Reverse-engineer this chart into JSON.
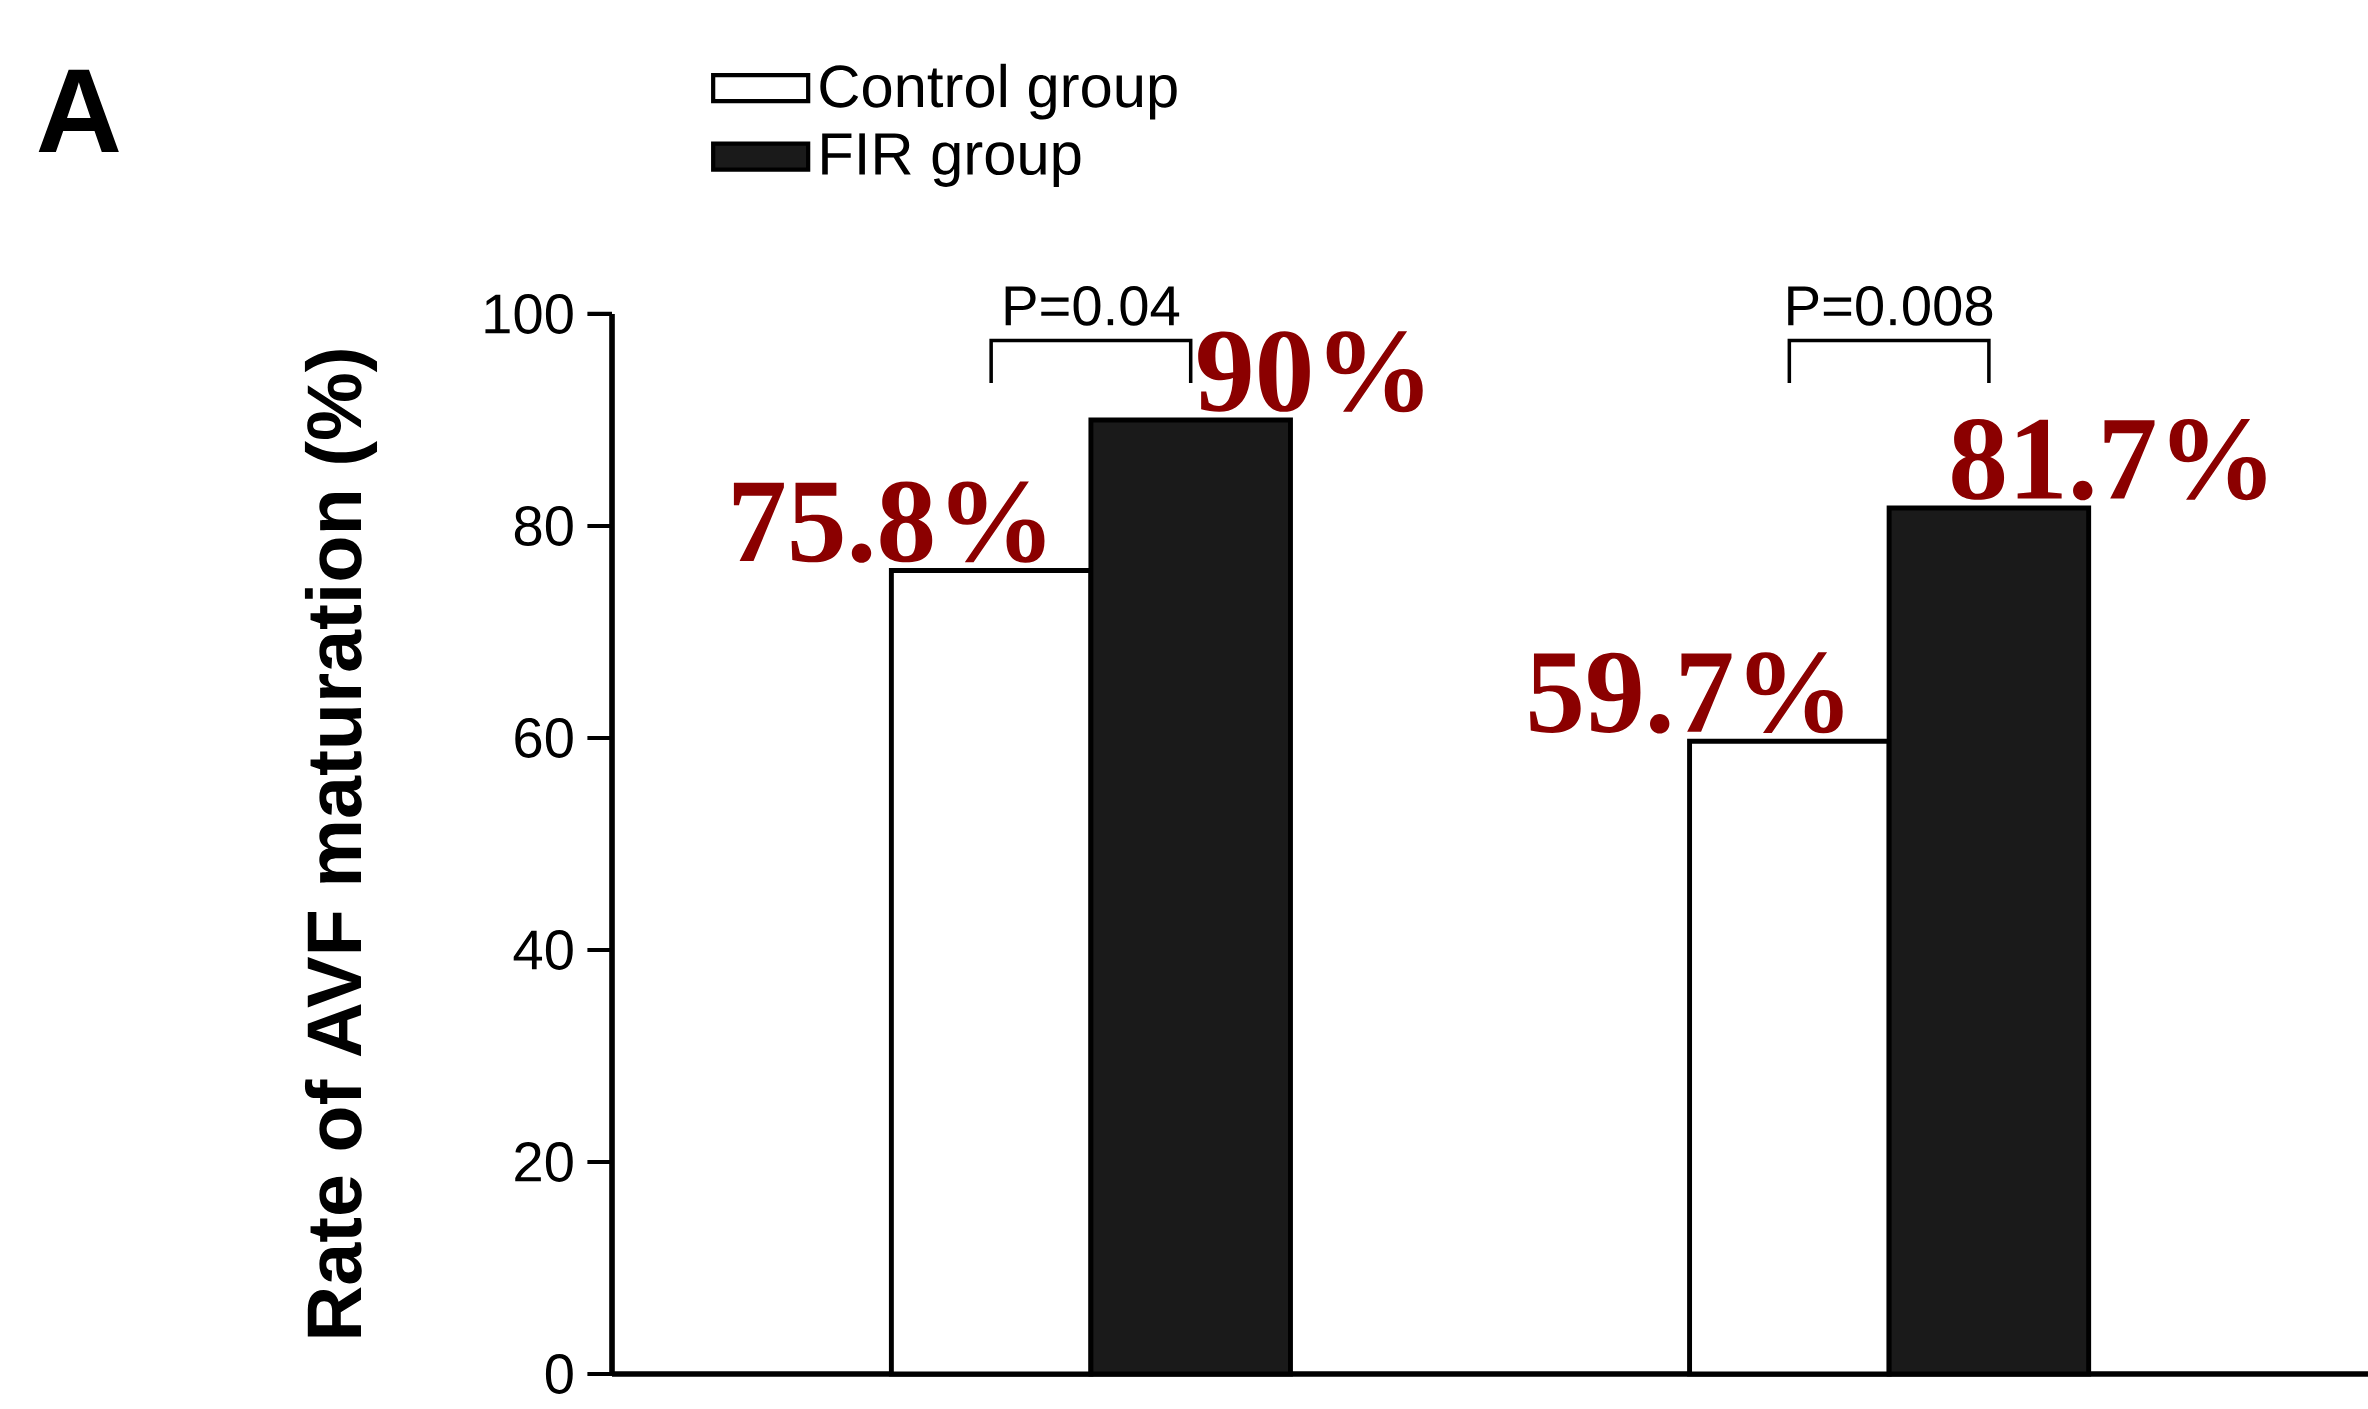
{
  "chart_data": {
    "type": "bar",
    "ylabel": "Rate of AVF maturation (%)",
    "categories": [
      null,
      null
    ],
    "series": [
      {
        "name": "Control group",
        "color": "#ffffff",
        "values": [
          75.8,
          59.7
        ],
        "value_labels": [
          "75.8%",
          "59.7%"
        ]
      },
      {
        "name": "FIR group",
        "color": "#1a1a1a",
        "values": [
          90,
          81.7
        ],
        "value_labels": [
          "90%",
          "81.7%"
        ]
      }
    ],
    "ylim": [
      0,
      100
    ],
    "yticks": [
      0,
      20,
      40,
      60,
      80,
      100
    ],
    "legend": "top left",
    "grid": false,
    "annotations": [
      "A",
      "P=0.04",
      "P=0.008"
    ]
  }
}
